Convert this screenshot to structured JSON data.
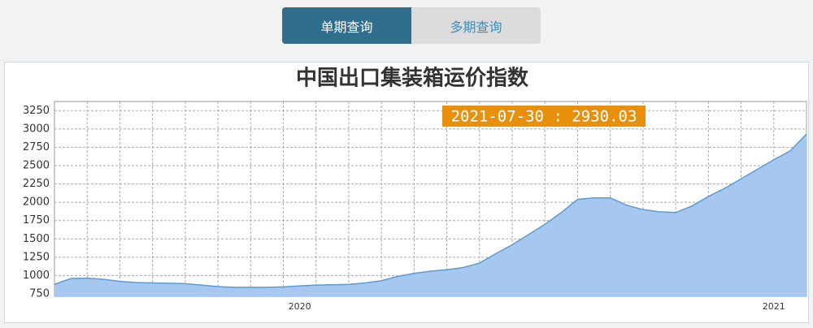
{
  "tabs": [
    "单期查询",
    "多期查询"
  ],
  "chart_data": {
    "type": "area",
    "title": "中国出口集装箱运价指数",
    "annotation": "2021-07-30 : 2930.03",
    "categories": [
      null,
      null,
      null,
      null,
      null,
      null,
      null,
      null,
      null,
      null,
      null,
      null,
      null,
      null,
      null,
      "2020",
      null,
      null,
      null,
      null,
      null,
      null,
      null,
      null,
      null,
      null,
      null,
      null,
      null,
      null,
      null,
      null,
      null,
      null,
      null,
      null,
      null,
      null,
      null,
      null,
      null,
      null,
      null,
      null,
      "2021",
      null,
      null
    ],
    "values": [
      880,
      960,
      965,
      950,
      920,
      905,
      900,
      895,
      890,
      870,
      850,
      840,
      840,
      840,
      845,
      860,
      870,
      875,
      880,
      900,
      930,
      990,
      1030,
      1060,
      1080,
      1110,
      1170,
      1300,
      1420,
      1560,
      1700,
      1860,
      2040,
      2060,
      2060,
      1960,
      1900,
      1870,
      1860,
      1950,
      2080,
      2190,
      2320,
      2450,
      2580,
      2700,
      2930.03
    ],
    "color": "#a6c8f0",
    "line_color": "#5b9bd5",
    "ylim": [
      750,
      3375
    ],
    "yticks": [
      750,
      1000,
      1250,
      1500,
      1750,
      2000,
      2250,
      2500,
      2750,
      3000,
      3250
    ],
    "grid": true
  }
}
